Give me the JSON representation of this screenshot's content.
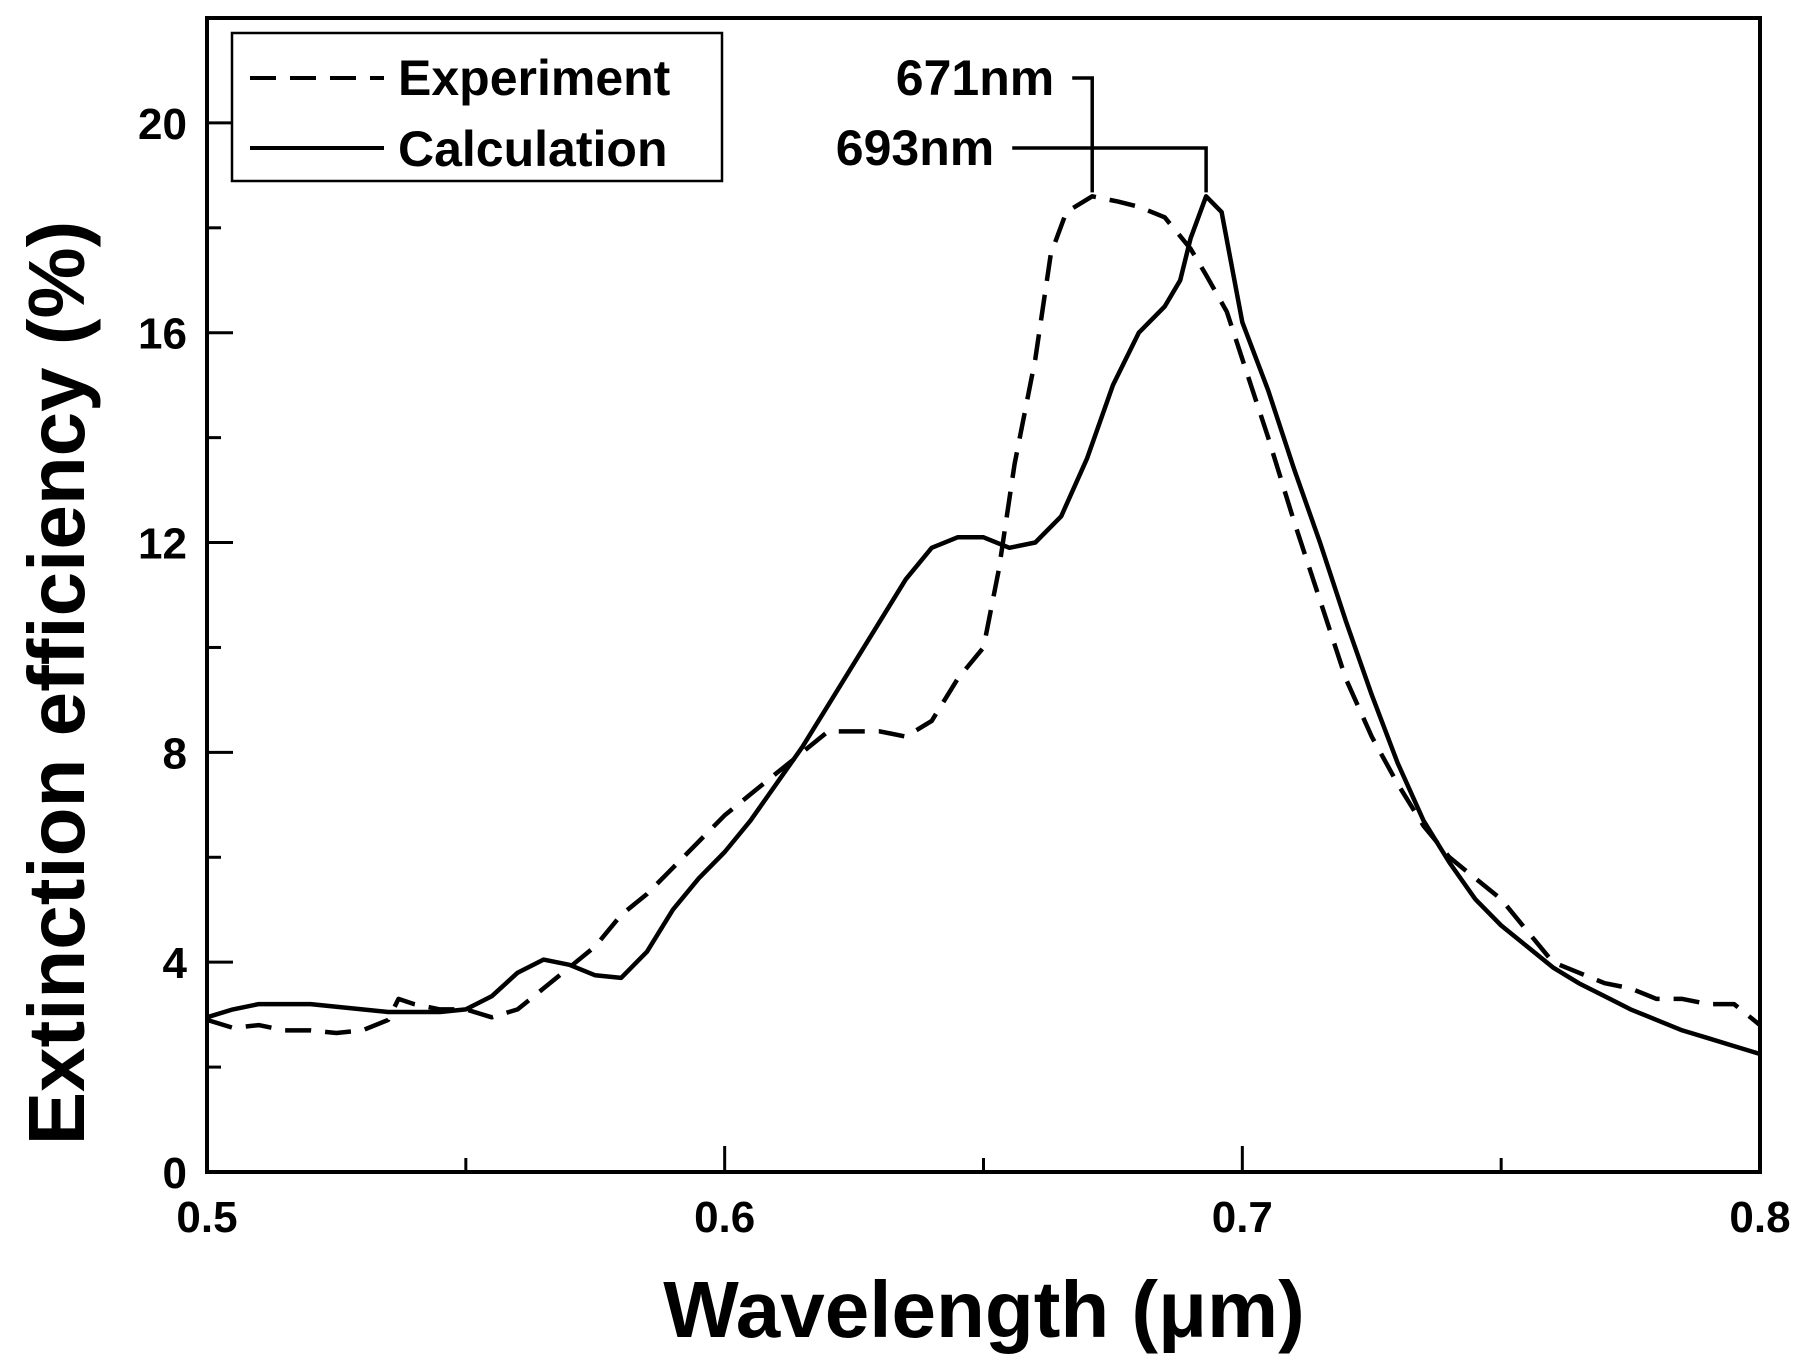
{
  "chart_data": {
    "type": "line",
    "title": "",
    "xlabel": "Wavelength (μm)",
    "ylabel": "Extinction efficiency (%)",
    "xlim": [
      0.5,
      0.8
    ],
    "ylim": [
      0,
      22
    ],
    "xticks": [
      0.5,
      0.6,
      0.7,
      0.8
    ],
    "xtick_labels": [
      "0.5",
      "0.6",
      "0.7",
      "0.8"
    ],
    "x_minor_ticks": [
      0.55,
      0.65,
      0.75
    ],
    "yticks": [
      0,
      4,
      8,
      12,
      16,
      20
    ],
    "ytick_labels": [
      "0",
      "4",
      "8",
      "12",
      "16",
      "20"
    ],
    "y_minor_ticks": [
      2,
      6,
      10,
      14,
      18
    ],
    "legend_position": "top-left",
    "grid": false,
    "series": [
      {
        "name": "Experiment",
        "style": "dashed",
        "color": "#000000",
        "points": [
          [
            0.5,
            2.9
          ],
          [
            0.505,
            2.75
          ],
          [
            0.51,
            2.8
          ],
          [
            0.515,
            2.7
          ],
          [
            0.52,
            2.7
          ],
          [
            0.525,
            2.65
          ],
          [
            0.53,
            2.7
          ],
          [
            0.535,
            2.9
          ],
          [
            0.537,
            3.3
          ],
          [
            0.54,
            3.2
          ],
          [
            0.545,
            3.1
          ],
          [
            0.55,
            3.1
          ],
          [
            0.555,
            2.95
          ],
          [
            0.56,
            3.1
          ],
          [
            0.565,
            3.5
          ],
          [
            0.57,
            3.9
          ],
          [
            0.575,
            4.3
          ],
          [
            0.58,
            4.9
          ],
          [
            0.585,
            5.3
          ],
          [
            0.59,
            5.8
          ],
          [
            0.595,
            6.3
          ],
          [
            0.6,
            6.8
          ],
          [
            0.605,
            7.2
          ],
          [
            0.61,
            7.6
          ],
          [
            0.615,
            8.0
          ],
          [
            0.62,
            8.4
          ],
          [
            0.625,
            8.4
          ],
          [
            0.63,
            8.4
          ],
          [
            0.635,
            8.3
          ],
          [
            0.64,
            8.6
          ],
          [
            0.645,
            9.4
          ],
          [
            0.65,
            10.0
          ],
          [
            0.653,
            11.5
          ],
          [
            0.656,
            13.5
          ],
          [
            0.66,
            15.5
          ],
          [
            0.663,
            17.5
          ],
          [
            0.666,
            18.3
          ],
          [
            0.671,
            18.6
          ],
          [
            0.676,
            18.5
          ],
          [
            0.68,
            18.4
          ],
          [
            0.685,
            18.2
          ],
          [
            0.69,
            17.6
          ],
          [
            0.693,
            17.1
          ],
          [
            0.697,
            16.4
          ],
          [
            0.7,
            15.5
          ],
          [
            0.705,
            14.0
          ],
          [
            0.71,
            12.4
          ],
          [
            0.715,
            10.9
          ],
          [
            0.72,
            9.4
          ],
          [
            0.725,
            8.3
          ],
          [
            0.73,
            7.4
          ],
          [
            0.735,
            6.6
          ],
          [
            0.74,
            6.0
          ],
          [
            0.745,
            5.6
          ],
          [
            0.75,
            5.2
          ],
          [
            0.755,
            4.6
          ],
          [
            0.76,
            4.0
          ],
          [
            0.765,
            3.8
          ],
          [
            0.77,
            3.6
          ],
          [
            0.775,
            3.5
          ],
          [
            0.78,
            3.3
          ],
          [
            0.785,
            3.3
          ],
          [
            0.79,
            3.2
          ],
          [
            0.795,
            3.2
          ],
          [
            0.8,
            2.8
          ]
        ]
      },
      {
        "name": "Calculation",
        "style": "solid",
        "color": "#000000",
        "points": [
          [
            0.5,
            2.95
          ],
          [
            0.505,
            3.1
          ],
          [
            0.51,
            3.2
          ],
          [
            0.515,
            3.2
          ],
          [
            0.52,
            3.2
          ],
          [
            0.525,
            3.15
          ],
          [
            0.53,
            3.1
          ],
          [
            0.535,
            3.05
          ],
          [
            0.54,
            3.05
          ],
          [
            0.545,
            3.05
          ],
          [
            0.55,
            3.1
          ],
          [
            0.555,
            3.35
          ],
          [
            0.56,
            3.8
          ],
          [
            0.565,
            4.05
          ],
          [
            0.57,
            3.95
          ],
          [
            0.575,
            3.75
          ],
          [
            0.58,
            3.7
          ],
          [
            0.585,
            4.2
          ],
          [
            0.59,
            5.0
          ],
          [
            0.595,
            5.6
          ],
          [
            0.6,
            6.1
          ],
          [
            0.605,
            6.7
          ],
          [
            0.61,
            7.4
          ],
          [
            0.615,
            8.1
          ],
          [
            0.62,
            8.9
          ],
          [
            0.625,
            9.7
          ],
          [
            0.63,
            10.5
          ],
          [
            0.635,
            11.3
          ],
          [
            0.64,
            11.9
          ],
          [
            0.645,
            12.1
          ],
          [
            0.65,
            12.1
          ],
          [
            0.655,
            11.9
          ],
          [
            0.66,
            12.0
          ],
          [
            0.665,
            12.5
          ],
          [
            0.67,
            13.6
          ],
          [
            0.675,
            15.0
          ],
          [
            0.68,
            16.0
          ],
          [
            0.685,
            16.5
          ],
          [
            0.688,
            17.0
          ],
          [
            0.69,
            17.8
          ],
          [
            0.693,
            18.6
          ],
          [
            0.696,
            18.3
          ],
          [
            0.7,
            16.2
          ],
          [
            0.705,
            14.9
          ],
          [
            0.71,
            13.4
          ],
          [
            0.715,
            12.0
          ],
          [
            0.72,
            10.5
          ],
          [
            0.725,
            9.1
          ],
          [
            0.73,
            7.8
          ],
          [
            0.735,
            6.7
          ],
          [
            0.74,
            5.9
          ],
          [
            0.745,
            5.2
          ],
          [
            0.75,
            4.7
          ],
          [
            0.755,
            4.3
          ],
          [
            0.76,
            3.9
          ],
          [
            0.765,
            3.6
          ],
          [
            0.77,
            3.35
          ],
          [
            0.775,
            3.1
          ],
          [
            0.78,
            2.9
          ],
          [
            0.785,
            2.7
          ],
          [
            0.79,
            2.55
          ],
          [
            0.795,
            2.4
          ],
          [
            0.8,
            2.25
          ]
        ]
      }
    ],
    "annotations": [
      {
        "text": "671nm",
        "x": 0.671,
        "y": 18.6
      },
      {
        "text": "693nm",
        "x": 0.693,
        "y": 18.6
      }
    ]
  }
}
